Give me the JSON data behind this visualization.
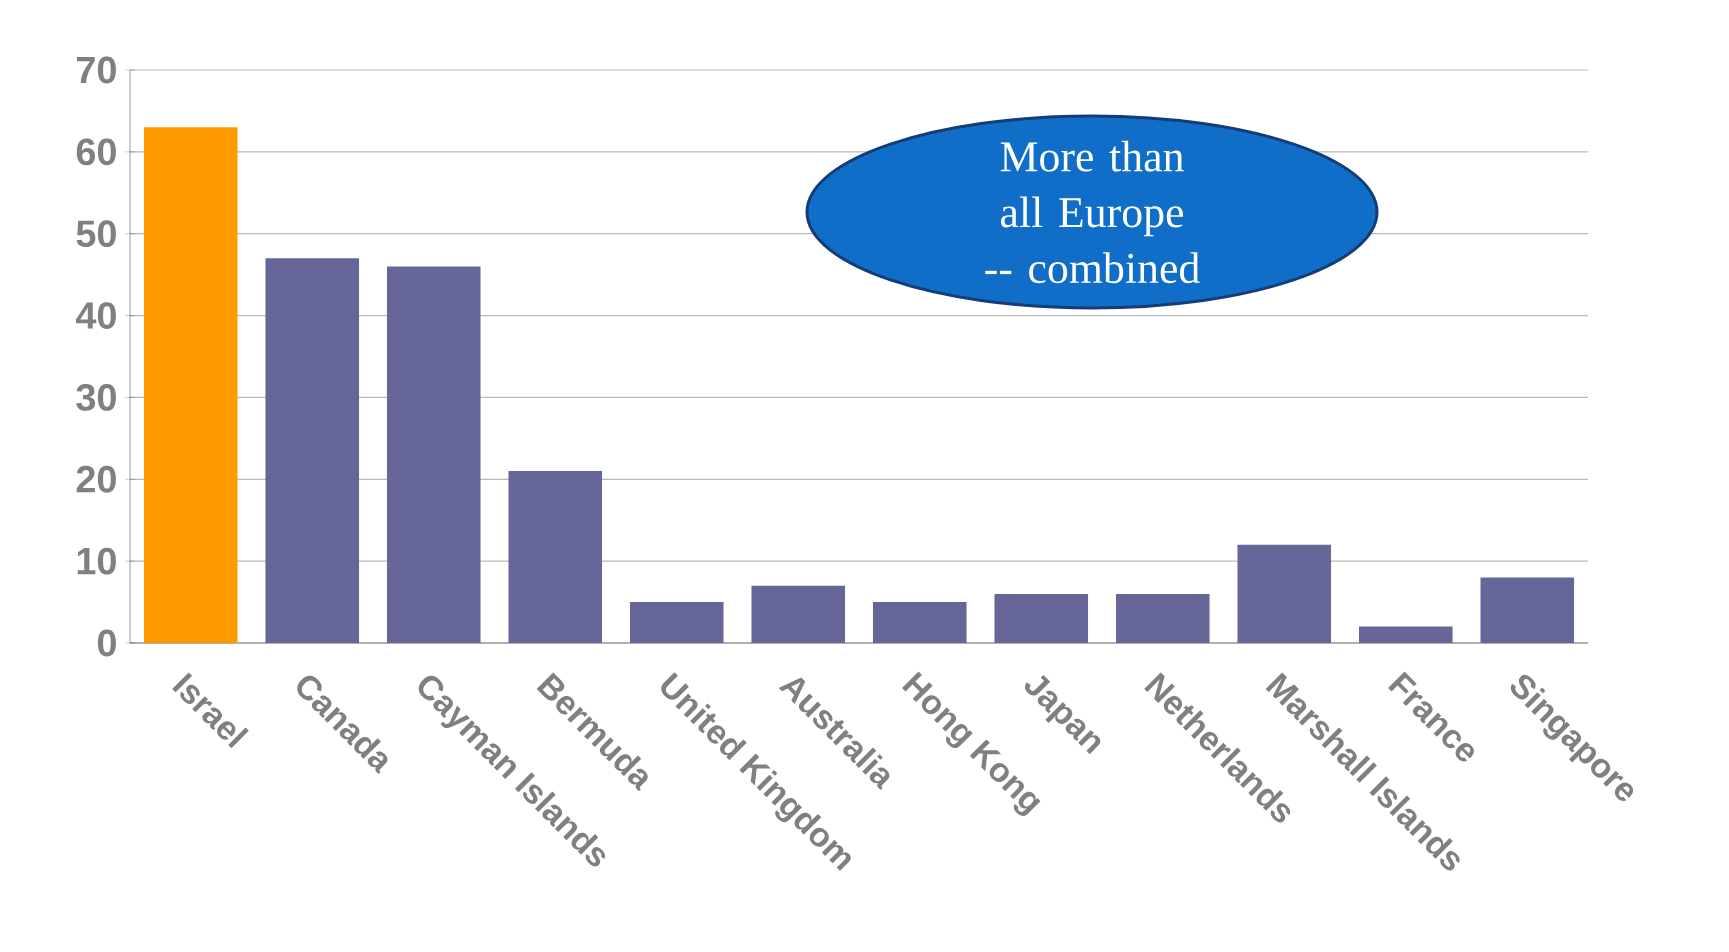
{
  "chart_data": {
    "type": "bar",
    "categories": [
      "Israel",
      "Canada",
      "Cayman Islands",
      "Bermuda",
      "United Kingdom",
      "Australia",
      "Hong Kong",
      "Japan",
      "Netherlands",
      "Marshall Islands",
      "France",
      "Singapore"
    ],
    "values": [
      63,
      47,
      46,
      21,
      5,
      7,
      5,
      6,
      6,
      12,
      2,
      8
    ],
    "colors": [
      "#ff9900",
      "#666699",
      "#666699",
      "#666699",
      "#666699",
      "#666699",
      "#666699",
      "#666699",
      "#666699",
      "#666699",
      "#666699",
      "#666699"
    ],
    "ylim": [
      0,
      70
    ],
    "yticks": [
      0,
      10,
      20,
      30,
      40,
      50,
      60,
      70
    ],
    "grid": "y",
    "annotations": [
      "More than all Europe -- combined"
    ]
  }
}
